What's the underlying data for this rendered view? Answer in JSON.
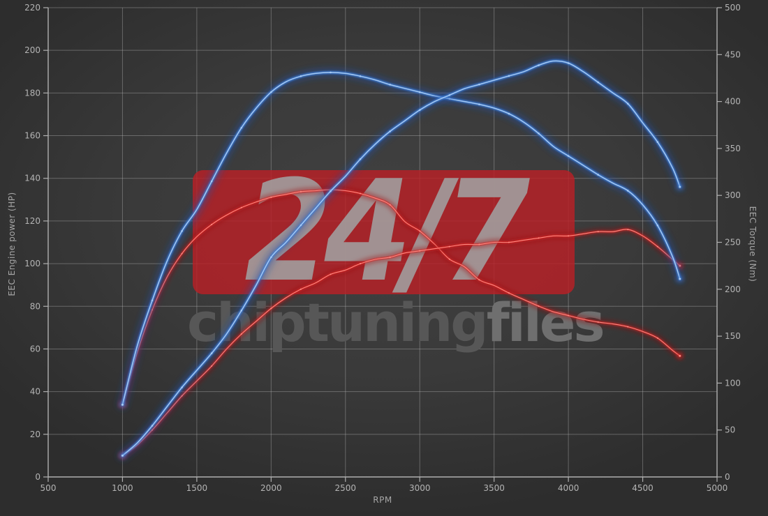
{
  "chart_data": {
    "type": "line",
    "title": "",
    "xlabel": "RPM",
    "ylabel_left": "EEC Engine power (HP)",
    "ylabel_right": "EEC Torque (Nm)",
    "grid": true,
    "legend": "none",
    "x_range": [
      500,
      5000
    ],
    "y_left_range": [
      0,
      220
    ],
    "y_right_range": [
      0,
      500
    ],
    "x_ticks": [
      500,
      1000,
      1500,
      2000,
      2500,
      3000,
      3500,
      4000,
      4500,
      5000
    ],
    "y_left_ticks": [
      0,
      20,
      40,
      60,
      80,
      100,
      120,
      140,
      160,
      180,
      200,
      220
    ],
    "y_right_ticks": [
      0,
      50,
      100,
      150,
      200,
      250,
      300,
      350,
      400,
      450,
      500
    ],
    "rpm": [
      1000,
      1100,
      1200,
      1300,
      1400,
      1500,
      1600,
      1700,
      1800,
      1900,
      2000,
      2100,
      2200,
      2300,
      2400,
      2500,
      2600,
      2700,
      2800,
      2900,
      3000,
      3100,
      3200,
      3300,
      3400,
      3500,
      3600,
      3700,
      3800,
      3900,
      4000,
      4100,
      4200,
      4300,
      4400,
      4500,
      4600,
      4700,
      4750
    ],
    "series": [
      {
        "name": "torque-red",
        "axis": "right",
        "unit": "Nm",
        "peak": "306 Nm @ 2400 RPM",
        "glow": "#9b0e14",
        "mid": "#df1f1f",
        "core": "#ff8f86",
        "values": [
          77,
          133,
          178,
          213,
          238,
          256,
          269,
          279,
          287,
          293,
          298,
          301,
          304,
          305,
          306,
          305,
          302,
          297,
          290,
          272,
          262,
          248,
          232,
          224,
          210,
          204,
          196,
          189,
          182,
          176,
          172,
          168,
          165,
          163,
          160,
          155,
          148,
          135,
          129
        ]
      },
      {
        "name": "power-red",
        "axis": "left",
        "unit": "HP",
        "peak": "116 HP @ 4400 RPM",
        "glow": "#9b0e14",
        "mid": "#df1f1f",
        "core": "#ff8f86",
        "values": [
          10,
          15,
          22,
          30,
          38,
          45,
          52,
          60,
          67,
          73,
          79,
          84,
          88,
          91,
          95,
          97,
          100,
          102,
          103,
          105,
          106,
          107,
          108,
          109,
          109,
          110,
          110,
          111,
          112,
          113,
          113,
          114,
          115,
          115,
          116,
          113,
          108,
          102,
          99
        ]
      },
      {
        "name": "torque-blue",
        "axis": "right",
        "unit": "Nm",
        "peak": "431 Nm @ 2400 RPM",
        "glow": "#1e4fa8",
        "mid": "#3d7bd6",
        "core": "#a9cdf6",
        "values": [
          77,
          140,
          188,
          230,
          262,
          285,
          315,
          345,
          372,
          393,
          410,
          421,
          427,
          430,
          431,
          430,
          427,
          423,
          418,
          414,
          410,
          406,
          403,
          400,
          397,
          393,
          387,
          378,
          366,
          352,
          342,
          332,
          322,
          313,
          305,
          290,
          268,
          235,
          211
        ]
      },
      {
        "name": "power-blue",
        "axis": "left",
        "unit": "HP",
        "peak": "195 HP @ 3900 RPM",
        "glow": "#1e4fa8",
        "mid": "#3d7bd6",
        "core": "#a9cdf6",
        "values": [
          10,
          16,
          24,
          33,
          42,
          50,
          58,
          67,
          78,
          90,
          103,
          110,
          118,
          126,
          134,
          141,
          149,
          156,
          162,
          167,
          172,
          176,
          179,
          182,
          184,
          186,
          188,
          190,
          193,
          195,
          194,
          190,
          185,
          180,
          175,
          166,
          157,
          145,
          136
        ]
      }
    ]
  },
  "watermark": {
    "badge_text": "24/7",
    "brand_bold": "chiptuning",
    "brand_light": "files",
    "badge_color": "#b92026"
  },
  "style_colors": {
    "background": "#3a3a3a",
    "gridline": "#bebebe",
    "axis": "#b0b0b0",
    "tick_label": "#b4b4b4"
  }
}
